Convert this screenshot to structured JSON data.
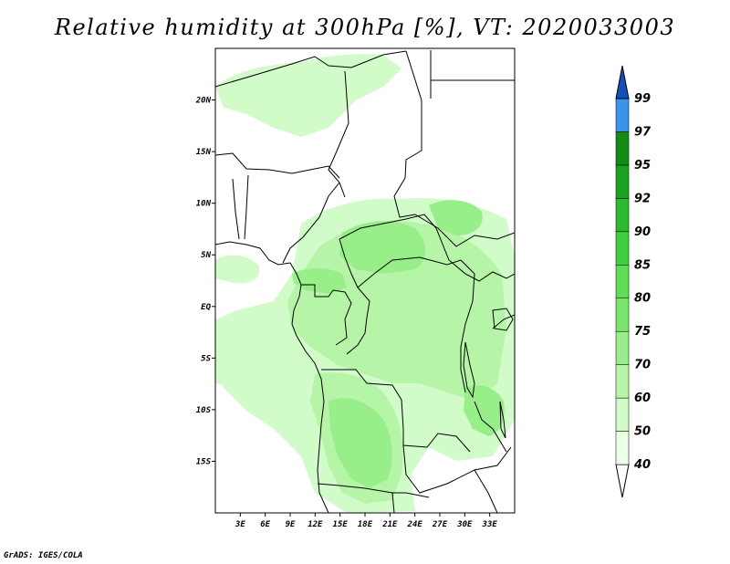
{
  "title": "Relative humidity at 300hPa [%], VT: 2020033003",
  "credit": "GrADS: IGES/COLA",
  "map": {
    "lon_range": [
      0,
      36
    ],
    "lat_range": [
      -20,
      25
    ],
    "x_ticks": [
      "3E",
      "6E",
      "9E",
      "12E",
      "15E",
      "18E",
      "21E",
      "24E",
      "27E",
      "30E",
      "33E"
    ],
    "y_ticks": [
      "20N",
      "15N",
      "10N",
      "5N",
      "EQ",
      "5S",
      "10S",
      "15S"
    ]
  },
  "colorbar": {
    "levels": [
      "40",
      "50",
      "60",
      "70",
      "75",
      "80",
      "85",
      "90",
      "92",
      "95",
      "97",
      "99"
    ],
    "colors": [
      "#eaffe6",
      "#d2fbca",
      "#b6f5a8",
      "#98ee89",
      "#7be66c",
      "#5fdd55",
      "#41cf40",
      "#2cba30",
      "#1aa31f",
      "#138c17",
      "#3a94ec",
      "#1f6fd9",
      "#1450b8"
    ]
  }
}
